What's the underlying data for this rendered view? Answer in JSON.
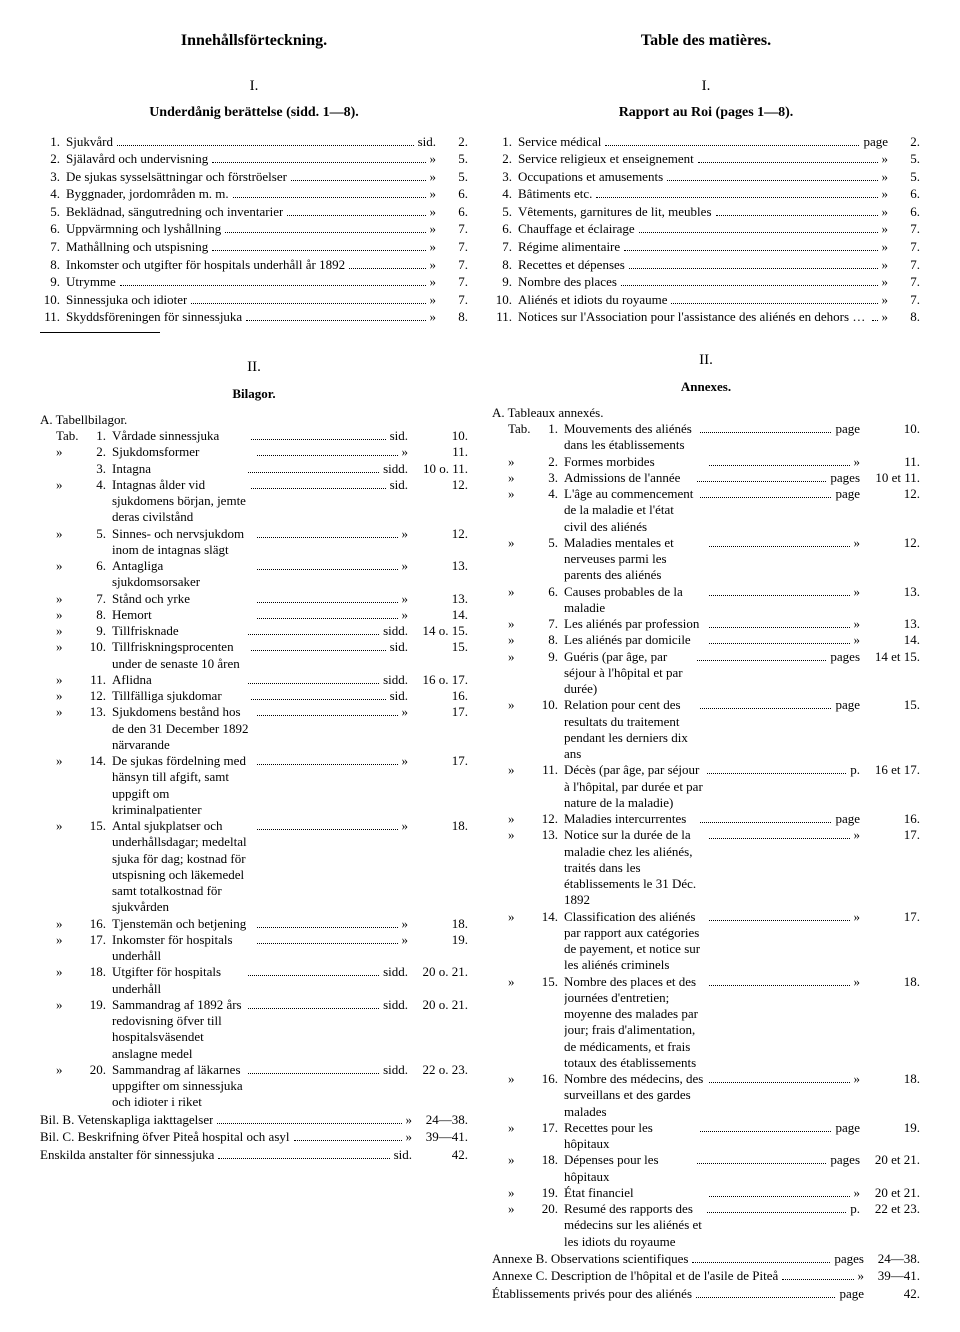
{
  "left": {
    "title": "Innehållsförteckning.",
    "sec1_num": "I.",
    "sec1_sub": "Underdånig berättelse (sidd. 1—8).",
    "items": [
      {
        "n": "1.",
        "t": "Sjukvård",
        "r": "sid.",
        "p": "2."
      },
      {
        "n": "2.",
        "t": "Själavård och undervisning",
        "r": "»",
        "p": "5."
      },
      {
        "n": "3.",
        "t": "De sjukas sysselsättningar och förströelser",
        "r": "»",
        "p": "5."
      },
      {
        "n": "4.",
        "t": "Byggnader, jordområden m. m.",
        "r": "»",
        "p": "6."
      },
      {
        "n": "5.",
        "t": "Beklädnad, sängutredning och inventarier",
        "r": "»",
        "p": "6."
      },
      {
        "n": "6.",
        "t": "Uppvärmning och lyshållning",
        "r": "»",
        "p": "7."
      },
      {
        "n": "7.",
        "t": "Mathållning och utspisning",
        "r": "»",
        "p": "7."
      },
      {
        "n": "8.",
        "t": "Inkomster och utgifter för hospitals underhåll år 1892",
        "r": "»",
        "p": "7."
      },
      {
        "n": "9.",
        "t": "Utrymme",
        "r": "»",
        "p": "7."
      },
      {
        "n": "10.",
        "t": "Sinnessjuka och idioter",
        "r": "»",
        "p": "7."
      },
      {
        "n": "11.",
        "t": "Skyddsföreningen för sinnessjuka",
        "r": "»",
        "p": "8."
      }
    ],
    "sec2_num": "II.",
    "sec2_sub": "Bilagor.",
    "a_head": "A. Tabellbilagor.",
    "tabs": [
      {
        "pre": "Tab.",
        "n": "1.",
        "t": "Vårdade sinnessjuka",
        "r": "sid.",
        "p": "10."
      },
      {
        "pre": "»",
        "n": "2.",
        "t": "Sjukdomsformer",
        "r": "»",
        "p": "11."
      },
      {
        "pre": "",
        "n": "3.",
        "t": "Intagna",
        "r": "sidd.",
        "p": "10 o. 11."
      },
      {
        "pre": "»",
        "n": "4.",
        "t": "Intagnas ålder vid sjukdomens början, jemte deras civilstånd",
        "r": "sid.",
        "p": "12."
      },
      {
        "pre": "»",
        "n": "5.",
        "t": "Sinnes- och nervsjukdom inom de intagnas slägt",
        "r": "»",
        "p": "12."
      },
      {
        "pre": "»",
        "n": "6.",
        "t": "Antagliga sjukdomsorsaker",
        "r": "»",
        "p": "13."
      },
      {
        "pre": "»",
        "n": "7.",
        "t": "Stånd och yrke",
        "r": "»",
        "p": "13."
      },
      {
        "pre": "»",
        "n": "8.",
        "t": "Hemort",
        "r": "»",
        "p": "14."
      },
      {
        "pre": "»",
        "n": "9.",
        "t": "Tillfrisknade",
        "r": "sidd.",
        "p": "14 o. 15."
      },
      {
        "pre": "»",
        "n": "10.",
        "t": "Tillfriskningsprocenten under de senaste 10 åren",
        "r": "sid.",
        "p": "15."
      },
      {
        "pre": "»",
        "n": "11.",
        "t": "Aflidna",
        "r": "sidd.",
        "p": "16 o. 17."
      },
      {
        "pre": "»",
        "n": "12.",
        "t": "Tillfälliga sjukdomar",
        "r": "sid.",
        "p": "16."
      },
      {
        "pre": "»",
        "n": "13.",
        "t": "Sjukdomens bestånd hos de den 31 December 1892 närvarande",
        "r": "»",
        "p": "17."
      },
      {
        "pre": "»",
        "n": "14.",
        "t": "De sjukas fördelning med hänsyn till afgift, samt uppgift om kriminalpatienter",
        "r": "»",
        "p": "17."
      },
      {
        "pre": "»",
        "n": "15.",
        "t": "Antal sjukplatser och underhållsdagar; medeltal sjuka för dag; kostnad för utspisning och läkemedel samt totalkostnad för sjukvården",
        "r": "»",
        "p": "18."
      },
      {
        "pre": "»",
        "n": "16.",
        "t": "Tjenstemän och betjening",
        "r": "»",
        "p": "18."
      },
      {
        "pre": "»",
        "n": "17.",
        "t": "Inkomster för hospitals underhåll",
        "r": "»",
        "p": "19."
      },
      {
        "pre": "»",
        "n": "18.",
        "t": "Utgifter för hospitals underhåll",
        "r": "sidd.",
        "p": "20 o. 21."
      },
      {
        "pre": "»",
        "n": "19.",
        "t": "Sammandrag af 1892 års redovisning öfver till hospitalsväsendet anslagne medel",
        "r": "sidd.",
        "p": "20 o. 21."
      },
      {
        "pre": "»",
        "n": "20.",
        "t": "Sammandrag af läkarnes uppgifter om sinnessjuka och idioter i riket",
        "r": "sidd.",
        "p": "22 o. 23."
      }
    ],
    "bilb": {
      "t": "Bil. B. Vetenskapliga iakttagelser",
      "r": "»",
      "p": "24—38."
    },
    "bilc": {
      "t": "Bil. C. Beskrifning öfver Piteå hospital och asyl",
      "r": "»",
      "p": "39—41."
    },
    "ensk": {
      "t": "Enskilda anstalter för sinnessjuka",
      "r": "sid.",
      "p": "42."
    }
  },
  "right": {
    "title": "Table des matières.",
    "sec1_num": "I.",
    "sec1_sub": "Rapport au Roi (pages 1—8).",
    "items": [
      {
        "n": "1.",
        "t": "Service médical",
        "r": "page",
        "p": "2."
      },
      {
        "n": "2.",
        "t": "Service religieux et enseignement",
        "r": "»",
        "p": "5."
      },
      {
        "n": "3.",
        "t": "Occupations et amusements",
        "r": "»",
        "p": "5."
      },
      {
        "n": "4.",
        "t": "Bâtiments etc.",
        "r": "»",
        "p": "6."
      },
      {
        "n": "5.",
        "t": "Vêtements, garnitures de lit, meubles",
        "r": "»",
        "p": "6."
      },
      {
        "n": "6.",
        "t": "Chauffage et éclairage",
        "r": "»",
        "p": "7."
      },
      {
        "n": "7.",
        "t": "Régime alimentaire",
        "r": "»",
        "p": "7."
      },
      {
        "n": "8.",
        "t": "Recettes et dépenses",
        "r": "»",
        "p": "7."
      },
      {
        "n": "9.",
        "t": "Nombre des places",
        "r": "»",
        "p": "7."
      },
      {
        "n": "10.",
        "t": "Aliénés et idiots du royaume",
        "r": "»",
        "p": "7."
      },
      {
        "n": "11.",
        "t": "Notices sur l'Association pour l'assistance des aliénés en dehors des institutions publiques",
        "r": "»",
        "p": "8."
      }
    ],
    "sec2_num": "II.",
    "sec2_sub": "Annexes.",
    "a_head": "A. Tableaux annexés.",
    "tabs": [
      {
        "pre": "Tab.",
        "n": "1.",
        "t": "Mouvements des aliénés dans les établissements",
        "r": "page",
        "p": "10."
      },
      {
        "pre": "»",
        "n": "2.",
        "t": "Formes morbides",
        "r": "»",
        "p": "11."
      },
      {
        "pre": "»",
        "n": "3.",
        "t": "Admissions de l'année",
        "r": "pages",
        "p": "10 et 11."
      },
      {
        "pre": "»",
        "n": "4.",
        "t": "L'âge au commencement de la maladie et l'état civil des aliénés",
        "r": "page",
        "p": "12."
      },
      {
        "pre": "»",
        "n": "5.",
        "t": "Maladies mentales et nerveuses parmi les parents des aliénés",
        "r": "»",
        "p": "12."
      },
      {
        "pre": "»",
        "n": "6.",
        "t": "Causes probables de la maladie",
        "r": "»",
        "p": "13."
      },
      {
        "pre": "»",
        "n": "7.",
        "t": "Les aliénés par profession",
        "r": "»",
        "p": "13."
      },
      {
        "pre": "»",
        "n": "8.",
        "t": "Les aliénés par domicile",
        "r": "»",
        "p": "14."
      },
      {
        "pre": "»",
        "n": "9.",
        "t": "Guéris (par âge, par séjour à l'hôpital et par durée)",
        "r": "pages",
        "p": "14 et 15."
      },
      {
        "pre": "»",
        "n": "10.",
        "t": "Relation pour cent des resultats du traitement pendant les derniers dix ans",
        "r": "page",
        "p": "15."
      },
      {
        "pre": "»",
        "n": "11.",
        "t": "Décès (par âge, par séjour à l'hôpital, par durée et par nature de la maladie)",
        "r": "p.",
        "p": "16 et 17."
      },
      {
        "pre": "»",
        "n": "12.",
        "t": "Maladies intercurrentes",
        "r": "page",
        "p": "16."
      },
      {
        "pre": "»",
        "n": "13.",
        "t": "Notice sur la durée de la maladie chez les aliénés, traités dans les établissements le 31 Déc. 1892",
        "r": "»",
        "p": "17."
      },
      {
        "pre": "»",
        "n": "14.",
        "t": "Classification des aliénés par rapport aux catégories de payement, et notice sur les aliénés criminels",
        "r": "»",
        "p": "17."
      },
      {
        "pre": "»",
        "n": "15.",
        "t": "Nombre des places et des journées d'entretien; moyenne des malades par jour; frais d'alimentation, de médicaments, et frais totaux des établissements",
        "r": "»",
        "p": "18."
      },
      {
        "pre": "»",
        "n": "16.",
        "t": "Nombre des médecins, des surveillans et des gardes malades",
        "r": "»",
        "p": "18."
      },
      {
        "pre": "»",
        "n": "17.",
        "t": "Recettes pour les hôpitaux",
        "r": "page",
        "p": "19."
      },
      {
        "pre": "»",
        "n": "18.",
        "t": "Dépenses pour les hôpitaux",
        "r": "pages",
        "p": "20 et 21."
      },
      {
        "pre": "»",
        "n": "19.",
        "t": "État financiel",
        "r": "»",
        "p": "20 et 21."
      },
      {
        "pre": "»",
        "n": "20.",
        "t": "Resumé des rapports des médecins sur les aliénés et les idiots du royaume",
        "r": "p.",
        "p": "22 et 23."
      }
    ],
    "annb": {
      "t": "Annexe B. Observations scientifiques",
      "r": "pages",
      "p": "24—38."
    },
    "annc": {
      "t": "Annexe C. Description de l'hôpital et de l'asile de Piteå",
      "r": "»",
      "p": "39—41."
    },
    "etab": {
      "t": "Établissements privés pour des aliénés",
      "r": "page",
      "p": "42."
    }
  }
}
